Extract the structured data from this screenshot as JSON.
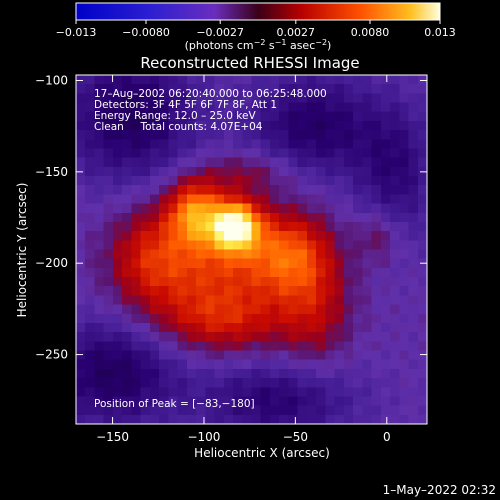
{
  "chart_data": {
    "type": "heatmap",
    "title": "Reconstructed RHESSI Image",
    "xlabel": "Heliocentric X (arcsec)",
    "ylabel": "Heliocentric Y (arcsec)",
    "xlim": [
      -170,
      22
    ],
    "ylim": [
      -288,
      -97
    ],
    "x_ticks": [
      -150,
      -100,
      -50,
      0
    ],
    "y_ticks": [
      -100,
      -150,
      -200,
      -250
    ],
    "x_tick_labels": [
      "−150",
      "−100",
      "−50",
      "0"
    ],
    "y_tick_labels": [
      "−100",
      "−150",
      "−200",
      "−250"
    ],
    "colorbar": {
      "range": [
        -0.013,
        0.013
      ],
      "tick_values": [
        -0.013,
        -0.008,
        -0.0027,
        0.0027,
        0.008,
        0.013
      ],
      "tick_labels": [
        "−0.013",
        "−0.0080",
        "−0.0027",
        "0.0027",
        "0.0080",
        "0.013"
      ],
      "unit_prefix": "(photons cm",
      "unit_exp1": "−2",
      "unit_mid1": " s",
      "unit_exp2": "−1",
      "unit_mid2": " asec",
      "unit_exp3": "−2",
      "unit_suffix": ")"
    },
    "info_lines": [
      "17–Aug–2002 06:20:40.000 to 06:25:48.000",
      "Detectors: 3F 4F 5F 6F 7F 8F, Att 1",
      "Energy Range: 12.0 – 25.0 keV",
      "Clean     Total counts: 4.07E+04"
    ],
    "peak_text": "Position of Peak = [−83,−180]",
    "peak": {
      "x": -83,
      "y": -180
    },
    "sources": [
      {
        "x": -83,
        "y": -180,
        "sx": 9,
        "sy": 9,
        "amp": 0.013
      },
      {
        "x": -105,
        "y": -172,
        "sx": 10,
        "sy": 12,
        "amp": 0.0075
      },
      {
        "x": -95,
        "y": -200,
        "sx": 30,
        "sy": 25,
        "amp": 0.006
      },
      {
        "x": -55,
        "y": -195,
        "sx": 15,
        "sy": 15,
        "amp": 0.005
      },
      {
        "x": -40,
        "y": -220,
        "sx": 14,
        "sy": 25,
        "amp": 0.004
      },
      {
        "x": -130,
        "y": -198,
        "sx": 15,
        "sy": 18,
        "amp": 0.0035
      },
      {
        "x": -90,
        "y": -232,
        "sx": 25,
        "sy": 12,
        "amp": 0.0035
      },
      {
        "x": -75,
        "y": -150,
        "sx": 18,
        "sy": 8,
        "amp": 0.0025
      },
      {
        "x": -5,
        "y": -185,
        "sx": 8,
        "sy": 10,
        "amp": 0.0025
      },
      {
        "x": -140,
        "y": -120,
        "sx": 25,
        "sy": 25,
        "amp": -0.005
      },
      {
        "x": -40,
        "y": -125,
        "sx": 25,
        "sy": 20,
        "amp": -0.0045
      },
      {
        "x": -150,
        "y": -260,
        "sx": 25,
        "sy": 20,
        "amp": -0.005
      },
      {
        "x": -60,
        "y": -275,
        "sx": 30,
        "sy": 15,
        "amp": -0.004
      },
      {
        "x": 5,
        "y": -150,
        "sx": 15,
        "sy": 25,
        "amp": -0.0035
      }
    ],
    "background": -0.0025,
    "grid": false,
    "colormap": [
      "#000000",
      "#3a00a0",
      "#6030b0",
      "#8a1a60",
      "#b80000",
      "#ff6a00",
      "#ffe030",
      "#ffffff"
    ]
  },
  "footer": {
    "timestamp": "1–May–2022 02:32"
  }
}
